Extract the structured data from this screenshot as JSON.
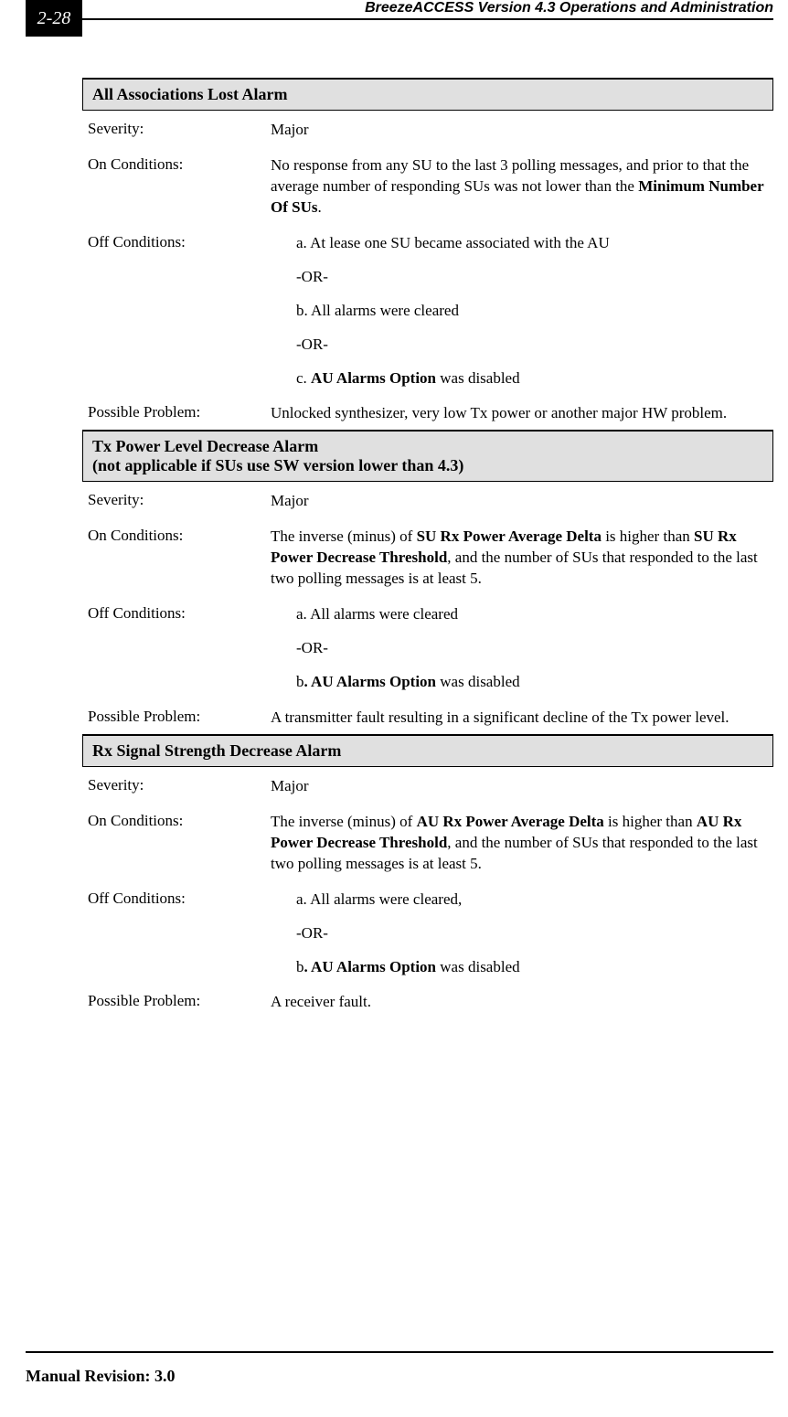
{
  "page_number": "2-28",
  "header_title": "BreezeACCESS Version 4.3 Operations and Administration",
  "footer": "Manual Revision: 3.0",
  "labels": {
    "severity": "Severity:",
    "on_conditions": "On Conditions:",
    "off_conditions": "Off Conditions:",
    "possible_problem": "Possible Problem:"
  },
  "or_sep": "-OR-",
  "alarms": [
    {
      "title": "All Associations Lost Alarm",
      "severity": "Major",
      "on_prefix": "No response from any SU to the last 3 polling messages, and prior to that the average number of responding SUs was not lower than the ",
      "on_bold": "Minimum Number Of SUs",
      "on_suffix": ".",
      "off_a": "a. At lease one SU became associated with the AU",
      "off_b": "b. All alarms were cleared",
      "off_c_prefix": "c. ",
      "off_c_bold": "AU Alarms Option",
      "off_c_suffix": " was disabled",
      "problem": "Unlocked synthesizer, very low Tx power or another major HW problem."
    },
    {
      "title": "Tx Power Level Decrease Alarm\n(not applicable if SUs use SW version lower than 4.3)",
      "severity": "Major",
      "on_prefix": "The inverse (minus) of ",
      "on_bold1": "SU Rx Power Average Delta",
      "on_mid": " is higher than ",
      "on_bold2": "SU Rx Power Decrease Threshold",
      "on_suffix": ", and the number of SUs that responded to the last two polling messages is at least 5.",
      "off_a": "a. All alarms were cleared",
      "off_b_prefix": "b",
      "off_b_bold": ". AU Alarms Option",
      "off_b_suffix": " was disabled",
      "problem": "A transmitter fault resulting in a significant decline of the Tx power level."
    },
    {
      "title": "Rx Signal Strength Decrease Alarm",
      "severity": "Major",
      "on_prefix": "The inverse (minus) of ",
      "on_bold1": "AU Rx Power Average Delta",
      "on_mid": " is higher than ",
      "on_bold2": "AU Rx Power Decrease Threshold",
      "on_suffix": ", and the number of SUs that responded to the last two polling messages is at least 5.",
      "off_a": "a. All alarms were cleared,",
      "off_b_prefix": "b",
      "off_b_bold": ". AU Alarms Option",
      "off_b_suffix": " was disabled",
      "problem": "A receiver fault."
    }
  ]
}
